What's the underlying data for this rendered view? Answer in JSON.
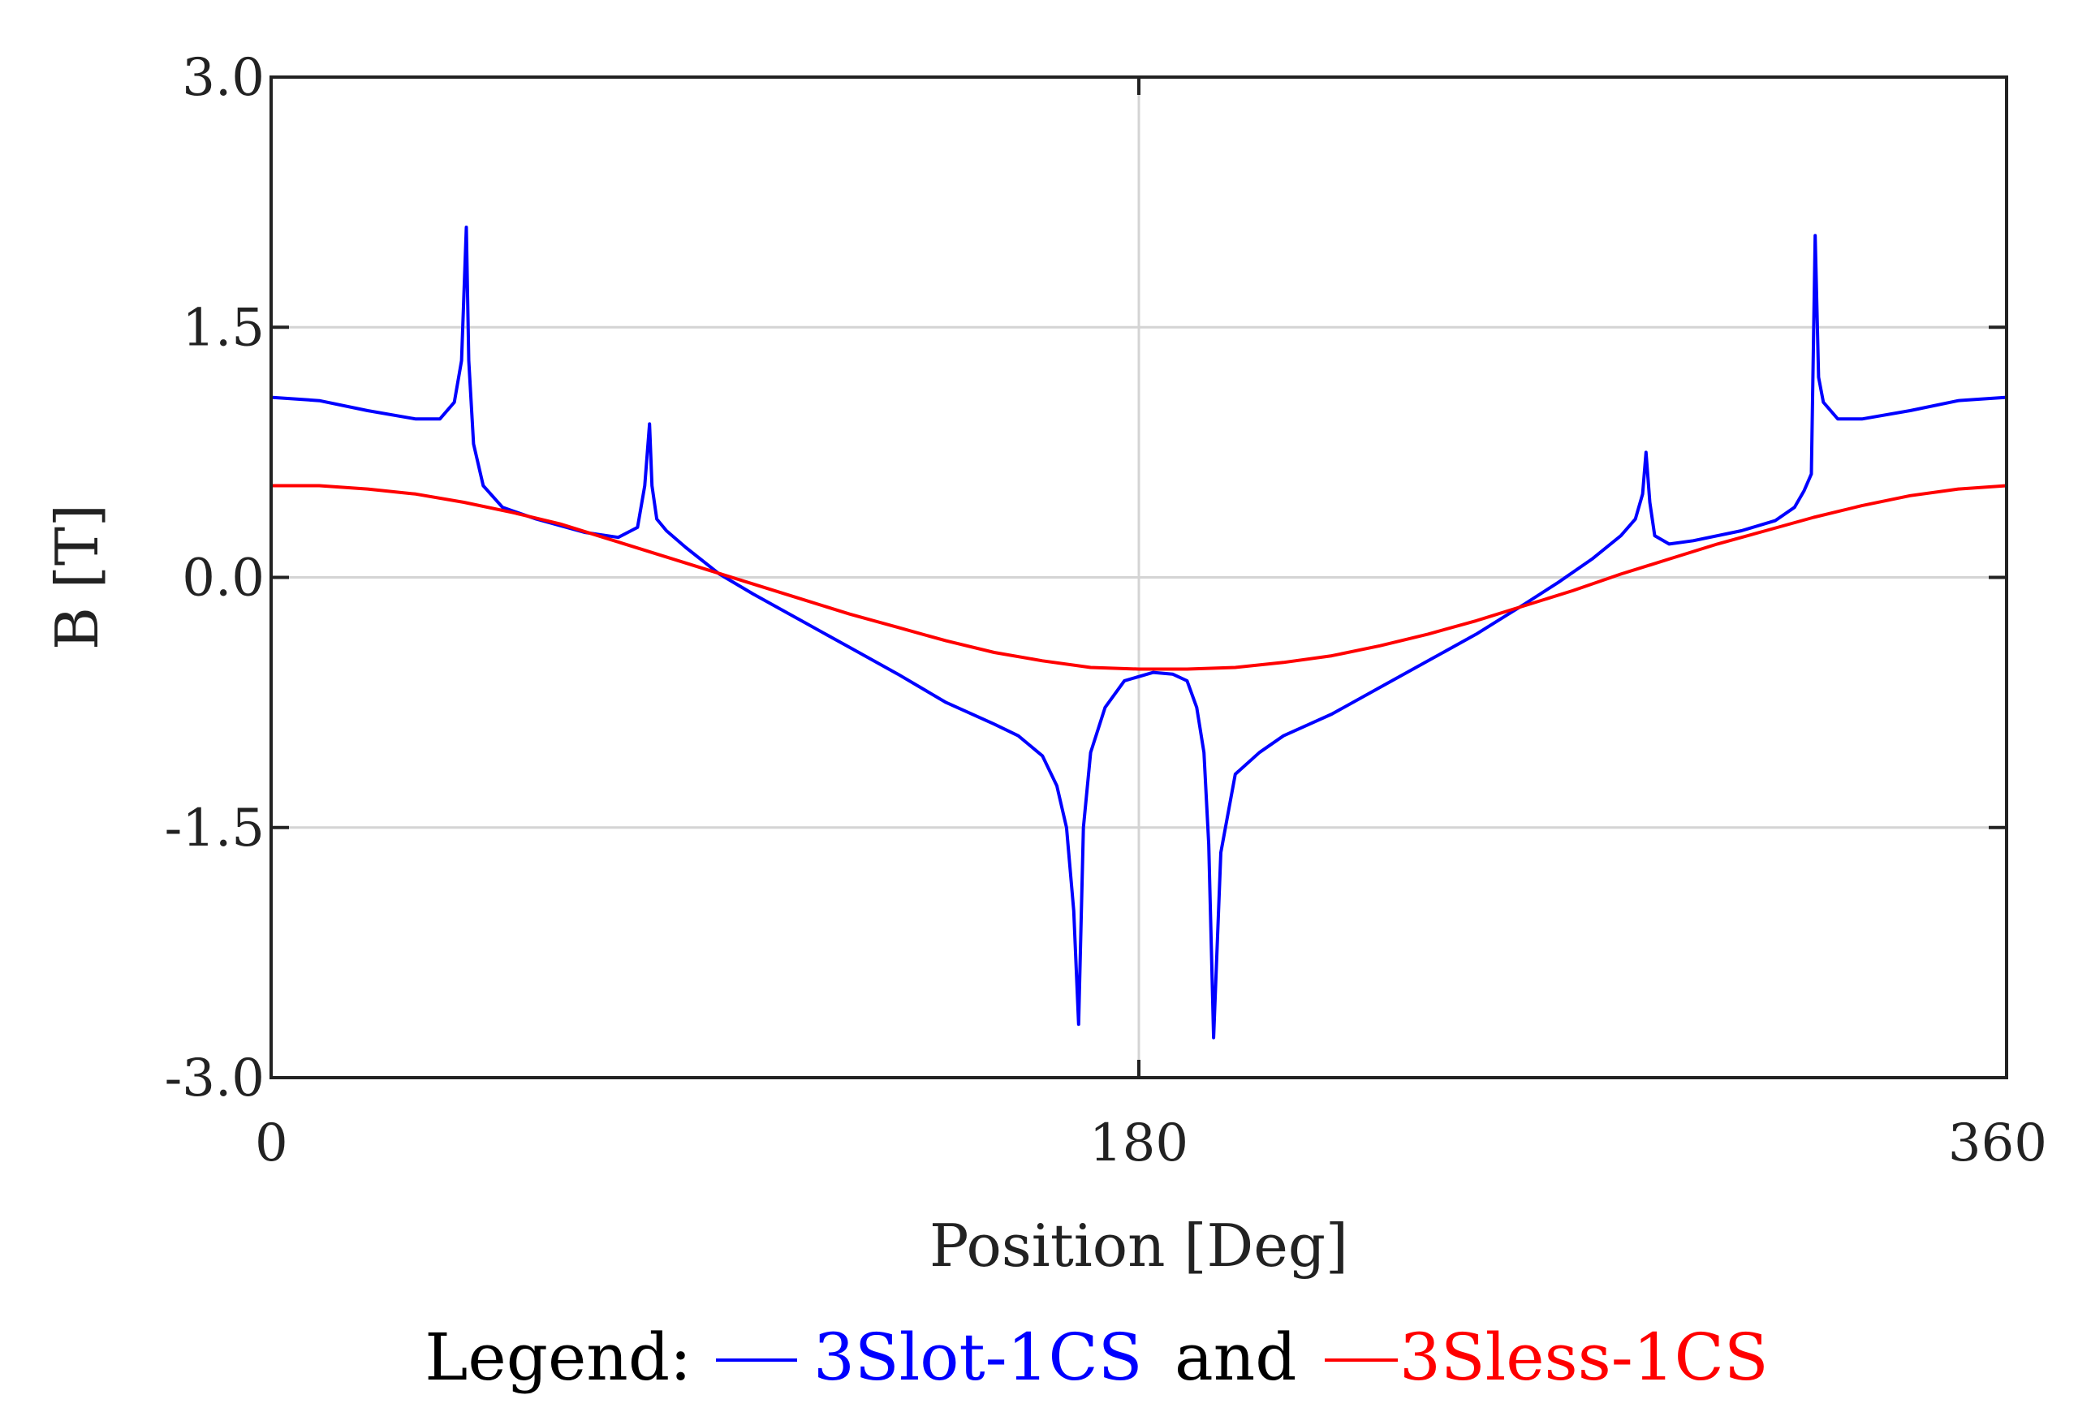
{
  "chart_data": {
    "type": "line",
    "xlabel": "Position [Deg]",
    "ylabel": "B [T]",
    "xlim": [
      0,
      360
    ],
    "ylim": [
      -3.0,
      3.0
    ],
    "xticks": [
      "0",
      "180",
      "360"
    ],
    "yticks": [
      "3.0",
      "1.5",
      "0.0",
      "-1.5",
      "-3.0"
    ],
    "grid": true,
    "legend": {
      "prefix": "Legend:",
      "joiner": "and",
      "placement": "bottom"
    },
    "series": [
      {
        "name": "3Slot-1CS",
        "color": "#0000ff",
        "x": [
          0,
          10,
          20,
          30,
          35,
          38,
          39.5,
          40.5,
          41,
          42,
          44,
          48,
          55,
          65,
          72,
          76,
          77.5,
          78.5,
          79,
          80,
          82,
          86,
          93,
          100,
          110,
          120,
          130,
          140,
          150,
          155,
          160,
          163,
          165,
          166.5,
          167.5,
          168.5,
          170,
          173,
          177,
          183,
          187,
          190,
          192,
          193.5,
          194.5,
          195.5,
          197,
          200,
          205,
          210,
          220,
          230,
          240,
          250,
          260,
          267,
          274,
          280,
          283,
          284.5,
          285.2,
          286,
          287,
          290,
          295,
          305,
          312,
          316,
          318,
          319.5,
          320.3,
          321,
          322,
          325,
          330,
          340,
          350,
          360
        ],
        "y": [
          1.08,
          1.06,
          1.0,
          0.95,
          0.95,
          1.05,
          1.3,
          2.1,
          1.3,
          0.8,
          0.55,
          0.42,
          0.35,
          0.27,
          0.24,
          0.3,
          0.55,
          0.92,
          0.55,
          0.35,
          0.28,
          0.18,
          0.02,
          -0.1,
          -0.26,
          -0.42,
          -0.58,
          -0.75,
          -0.88,
          -0.95,
          -1.07,
          -1.25,
          -1.5,
          -2.0,
          -2.68,
          -1.5,
          -1.05,
          -0.78,
          -0.62,
          -0.57,
          -0.58,
          -0.62,
          -0.78,
          -1.05,
          -1.6,
          -2.76,
          -1.65,
          -1.18,
          -1.05,
          -0.95,
          -0.82,
          -0.66,
          -0.5,
          -0.34,
          -0.16,
          -0.03,
          0.11,
          0.25,
          0.35,
          0.5,
          0.75,
          0.45,
          0.25,
          0.2,
          0.22,
          0.28,
          0.34,
          0.42,
          0.52,
          0.62,
          2.05,
          1.2,
          1.05,
          0.95,
          0.95,
          1.0,
          1.06,
          1.08
        ]
      },
      {
        "name": "3Sless-1CS",
        "color": "#ff0000",
        "x": [
          0,
          10,
          20,
          30,
          40,
          50,
          60,
          70,
          80,
          90,
          100,
          110,
          120,
          130,
          140,
          150,
          160,
          170,
          180,
          190,
          200,
          210,
          220,
          230,
          240,
          250,
          260,
          270,
          280,
          290,
          300,
          310,
          320,
          330,
          340,
          350,
          360
        ],
        "y": [
          0.55,
          0.55,
          0.53,
          0.5,
          0.45,
          0.39,
          0.32,
          0.23,
          0.14,
          0.05,
          -0.04,
          -0.13,
          -0.22,
          -0.3,
          -0.38,
          -0.45,
          -0.5,
          -0.54,
          -0.55,
          -0.55,
          -0.54,
          -0.51,
          -0.47,
          -0.41,
          -0.34,
          -0.26,
          -0.17,
          -0.08,
          0.02,
          0.11,
          0.2,
          0.28,
          0.36,
          0.43,
          0.49,
          0.53,
          0.55
        ]
      }
    ]
  }
}
